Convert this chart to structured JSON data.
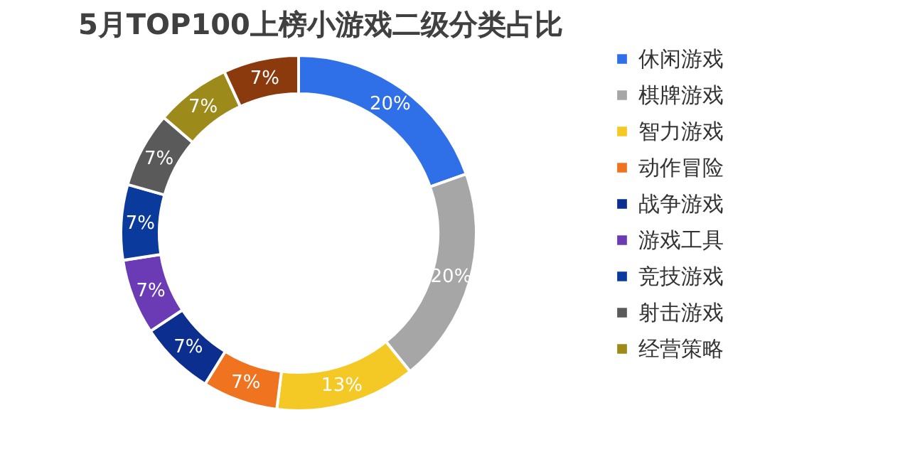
{
  "chart_data": {
    "type": "donut",
    "title": "5月TOP100上榜小游戏二级分类占比",
    "categories": [
      "休闲游戏",
      "棋牌游戏",
      "智力游戏",
      "动作冒险",
      "战争游戏",
      "游戏工具",
      "竞技游戏",
      "射击游戏",
      "经营策略",
      null
    ],
    "values": [
      20,
      20,
      13,
      7,
      7,
      7,
      7,
      7,
      7,
      7
    ],
    "colors": [
      "#2f6fe8",
      "#a6a6a6",
      "#f5c925",
      "#f07320",
      "#0c2f8f",
      "#6a3bb5",
      "#0a3a9c",
      "#5a5a5a",
      "#9c8a1a",
      "#8b3a0e"
    ],
    "value_labels": [
      "20%",
      "20%",
      "13%",
      "7%",
      "7%",
      "7%",
      "7%",
      "7%",
      "7%",
      "7%"
    ],
    "legend": "right"
  }
}
